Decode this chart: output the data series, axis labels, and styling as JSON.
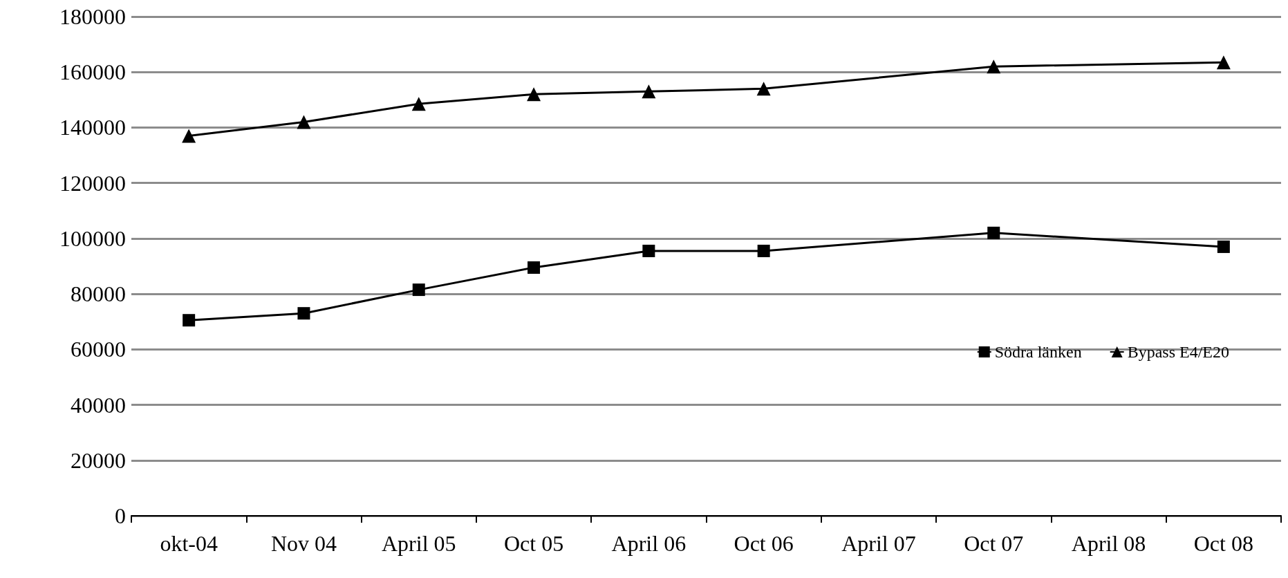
{
  "chart_data": {
    "type": "line",
    "categories": [
      "okt-04",
      "Nov 04",
      "April 05",
      "Oct 05",
      "April 06",
      "Oct 06",
      "April 07",
      "Oct 07",
      "April 08",
      "Oct 08"
    ],
    "series": [
      {
        "name": "Södra länken",
        "color": "#000000",
        "marker": "square",
        "values": [
          70500,
          73000,
          81500,
          89500,
          95500,
          95500,
          null,
          102000,
          null,
          97000
        ]
      },
      {
        "name": "Bypass E4/E20",
        "color": "#000000",
        "marker": "triangle",
        "values": [
          137000,
          142000,
          148500,
          152000,
          153000,
          154000,
          null,
          162000,
          null,
          163500
        ]
      }
    ],
    "ylim": [
      0,
      180000
    ],
    "yticks": [
      0,
      20000,
      40000,
      60000,
      80000,
      100000,
      120000,
      140000,
      160000,
      180000
    ],
    "grid": "y",
    "legend": "bottom right"
  }
}
